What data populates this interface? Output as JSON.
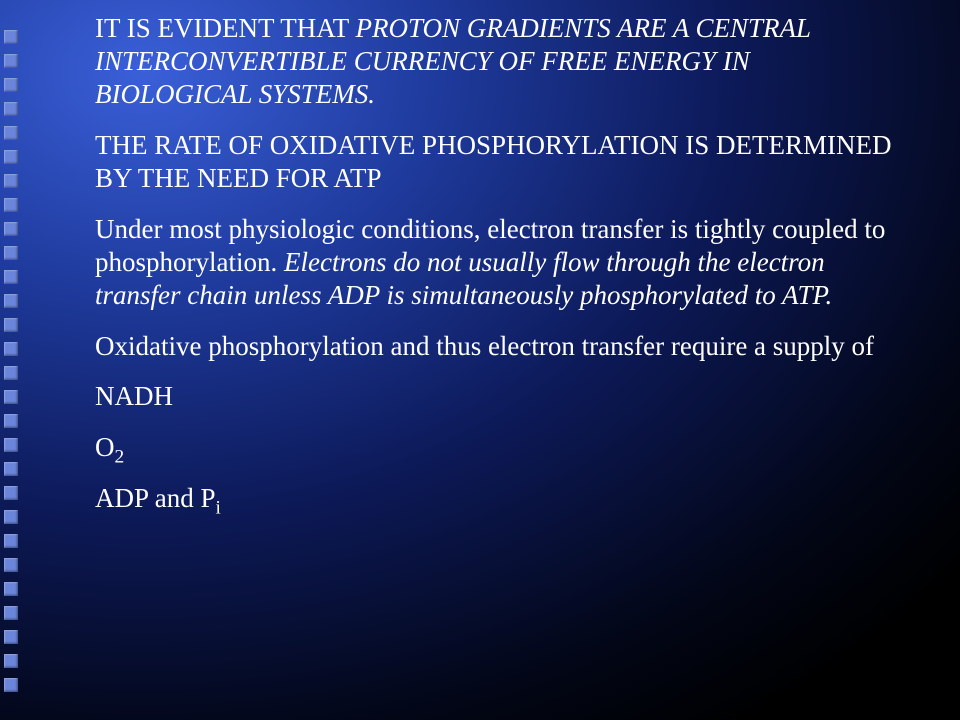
{
  "decor": {
    "square_count": 28,
    "square_color": "#6b85da"
  },
  "text": {
    "p1a": "IT IS EVIDENT THAT ",
    "p1b": "PROTON GRADIENTS ARE A CENTRAL INTERCONVERTIBLE CURRENCY OF FREE ENERGY IN BIOLOGICAL SYSTEMS.",
    "p2": "THE RATE OF OXIDATIVE PHOSPHORYLATION IS DETERMINED BY THE NEED FOR ATP",
    "p3a": "Under most physiologic conditions, electron transfer is tightly coupled to phosphorylation.  ",
    "p3b": "Electrons do not usually flow through the electron transfer chain unless ADP is simultaneously phosphorylated to ATP.",
    "p4": "Oxidative phosphorylation and thus electron transfer require a supply of",
    "p5": "NADH",
    "p6a": "O",
    "p6b": "2",
    "p7a": "ADP and P",
    "p7b": "i"
  },
  "style": {
    "text_color": "#ffffff",
    "font_family": "Times New Roman",
    "font_size_pt": 20,
    "background_gradient": [
      "#3a5fd8",
      "#1e3a9c",
      "#0d1a5a",
      "#020616",
      "#000000"
    ]
  }
}
